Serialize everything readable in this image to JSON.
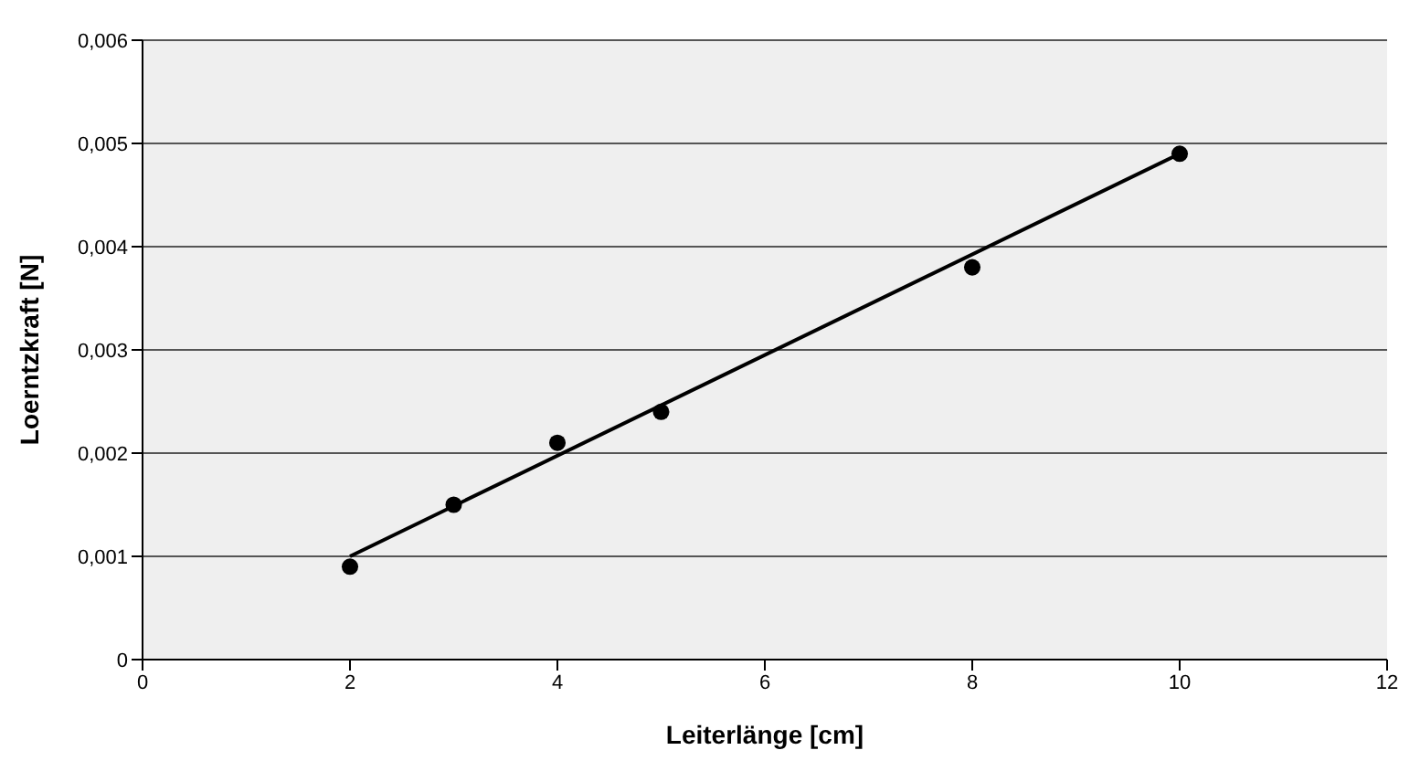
{
  "chart_data": {
    "type": "scatter",
    "xlabel": "Leiterlänge [cm]",
    "ylabel": "Loerntzkraft [N]",
    "xlim": [
      0,
      12
    ],
    "xticks": [
      0,
      2,
      4,
      6,
      8,
      10,
      12
    ],
    "ylim": [
      0,
      0.006
    ],
    "yticks": [
      0,
      {
        "value": 0.001,
        "label": "0,001"
      },
      {
        "value": 0.002,
        "label": "0,002"
      },
      {
        "value": 0.003,
        "label": "0,003"
      },
      {
        "value": 0.004,
        "label": "0,004"
      },
      {
        "value": 0.005,
        "label": "0,005"
      },
      {
        "value": 0.006,
        "label": "0,006"
      }
    ],
    "grid": "y",
    "series": [
      {
        "color": "#000000",
        "marker": "circle",
        "x": [
          2,
          3,
          4,
          5,
          8,
          10
        ],
        "values": [
          0.0009,
          0.0015,
          0.0021,
          0.0024,
          0.0038,
          0.0049
        ]
      },
      {
        "type": "line",
        "color": "#000000",
        "line_style": "solid",
        "marker": "none",
        "x": [
          2,
          10
        ],
        "values": [
          0.001,
          0.0049
        ]
      }
    ]
  }
}
